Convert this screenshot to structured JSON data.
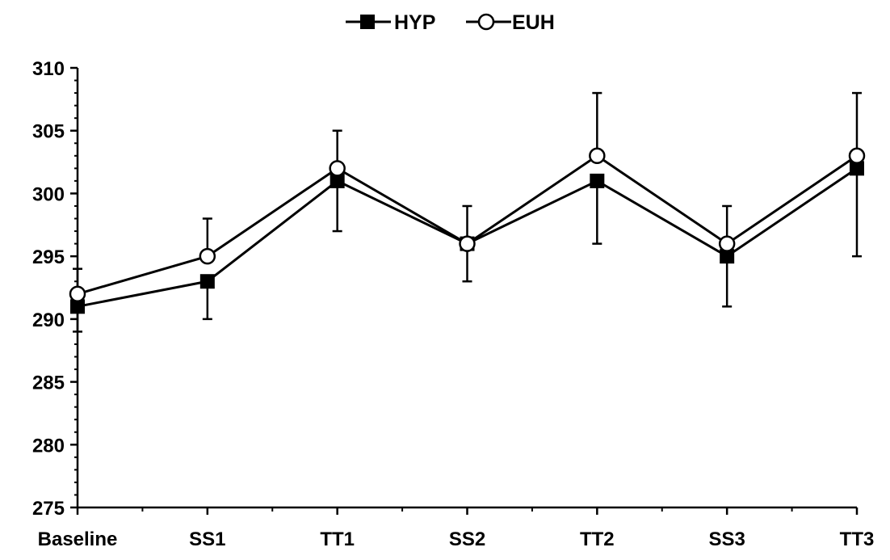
{
  "chart_data": {
    "type": "line",
    "title": "",
    "xlabel": "",
    "ylabel": "",
    "categories": [
      "Baseline",
      "SS1",
      "TT1",
      "SS2",
      "TT2",
      "SS3",
      "TT3"
    ],
    "ylim": [
      275,
      310
    ],
    "yticks": [
      275,
      280,
      285,
      290,
      295,
      300,
      305,
      310
    ],
    "y_minor_step": 1,
    "grid": false,
    "legend_position": "top-center",
    "series": [
      {
        "name": "HYP",
        "marker": "filled-square",
        "color": "#000000",
        "values": [
          291,
          293,
          301,
          296,
          301,
          295,
          302
        ],
        "error": [
          2,
          3,
          4,
          3,
          5,
          4,
          7
        ],
        "error_direction": "down"
      },
      {
        "name": "EUH",
        "marker": "open-circle",
        "color": "#000000",
        "values": [
          292,
          295,
          302,
          296,
          303,
          296,
          303
        ],
        "error": [
          2,
          3,
          3,
          3,
          5,
          3,
          5
        ],
        "error_direction": "up"
      }
    ]
  }
}
